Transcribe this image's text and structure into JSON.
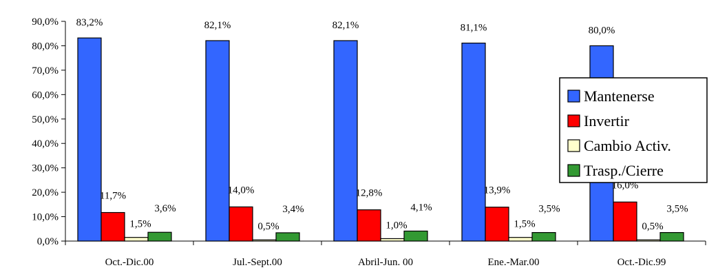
{
  "chart_data": {
    "type": "bar",
    "categories": [
      "Oct.-Dic.00",
      "Jul.-Sept.00",
      "Abril-Jun. 00",
      "Ene.-Mar.00",
      "Oct.-Dic.99"
    ],
    "series": [
      {
        "name": "Mantenerse",
        "color": "#3366ff",
        "values": [
          83.2,
          82.1,
          82.1,
          81.1,
          80.0
        ],
        "labels": [
          "83,2%",
          "82,1%",
          "82,1%",
          "81,1%",
          "80,0%"
        ]
      },
      {
        "name": "Invertir",
        "color": "#ff0000",
        "values": [
          11.7,
          14.0,
          12.8,
          13.9,
          16.0
        ],
        "labels": [
          "11,7%",
          "14,0%",
          "12,8%",
          "13,9%",
          "16,0%"
        ]
      },
      {
        "name": "Cambio Activ.",
        "color": "#ffffcc",
        "values": [
          1.5,
          0.5,
          1.0,
          1.5,
          0.5
        ],
        "labels": [
          "1,5%",
          "0,5%",
          "1,0%",
          "1,5%",
          "0,5%"
        ]
      },
      {
        "name": "Trasp./Cierre",
        "color": "#339933",
        "values": [
          3.6,
          3.4,
          4.1,
          3.5,
          3.5
        ],
        "labels": [
          "3,6%",
          "3,4%",
          "4,1%",
          "3,5%",
          "3,5%"
        ]
      }
    ],
    "y_ticks": [
      "0,0%",
      "10,0%",
      "20,0%",
      "30,0%",
      "40,0%",
      "50,0%",
      "60,0%",
      "70,0%",
      "80,0%",
      "90,0%"
    ],
    "ylim": [
      0,
      90
    ],
    "grid": false,
    "legend_position": "right"
  }
}
